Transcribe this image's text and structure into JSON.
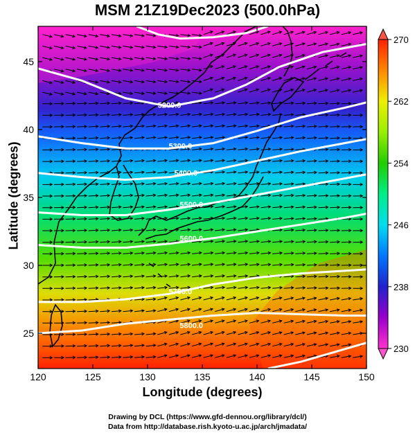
{
  "title": "MSM 21Z19Dec2023 (500.0hPa)",
  "xlabel": "Longitude (degrees)",
  "ylabel": "Latitude  (degrees)",
  "credits": [
    "Drawing by DCL (https://www.gfd-dennou.org/library/dcl/)",
    "Data from http://database.rish.kyoto-u.ac.jp/arch/jmadata/"
  ],
  "chart_data": {
    "type": "heatmap",
    "xlim": [
      120,
      150
    ],
    "ylim": [
      22.4,
      47.6
    ],
    "x_ticks": [
      120,
      125,
      130,
      135,
      140,
      145,
      150
    ],
    "y_ticks": [
      25,
      30,
      35,
      40,
      45
    ],
    "colorbar": {
      "min": 230,
      "max": 270,
      "ticks": [
        230,
        238,
        246,
        254,
        262,
        270
      ],
      "stops": [
        {
          "value": 230,
          "color": "#ff33cc"
        },
        {
          "value": 234,
          "color": "#9900cc"
        },
        {
          "value": 238,
          "color": "#2222cc"
        },
        {
          "value": 242,
          "color": "#0077ff"
        },
        {
          "value": 246,
          "color": "#00ddee"
        },
        {
          "value": 250,
          "color": "#00ee88"
        },
        {
          "value": 254,
          "color": "#22cc00"
        },
        {
          "value": 258,
          "color": "#99ee00"
        },
        {
          "value": 262,
          "color": "#eeee00"
        },
        {
          "value": 266,
          "color": "#ff8800"
        },
        {
          "value": 270,
          "color": "#ff2200"
        }
      ]
    },
    "contours": [
      {
        "label": "5200.0",
        "label_pos": [
          132.0,
          41.8
        ],
        "points": [
          [
            120,
            44.5
          ],
          [
            124,
            43.6
          ],
          [
            128,
            42.3
          ],
          [
            132,
            41.7
          ],
          [
            136,
            42.3
          ],
          [
            139,
            43.3
          ],
          [
            142,
            44.6
          ],
          [
            146,
            45.7
          ],
          [
            150,
            46.3
          ]
        ]
      },
      {
        "label": "5300.0",
        "label_pos": [
          133.0,
          38.8
        ],
        "points": [
          [
            120,
            39.5
          ],
          [
            124,
            39.0
          ],
          [
            128,
            38.6
          ],
          [
            132,
            38.6
          ],
          [
            136,
            39.0
          ],
          [
            140,
            39.9
          ],
          [
            144,
            40.9
          ],
          [
            148,
            41.6
          ],
          [
            150,
            42.0
          ]
        ]
      },
      {
        "label": "5400.0",
        "label_pos": [
          133.5,
          36.8
        ],
        "points": [
          [
            120,
            36.8
          ],
          [
            124,
            36.5
          ],
          [
            128,
            36.3
          ],
          [
            132,
            36.5
          ],
          [
            136,
            37.0
          ],
          [
            140,
            37.7
          ],
          [
            144,
            38.4
          ],
          [
            148,
            39.0
          ],
          [
            150,
            39.3
          ]
        ]
      },
      {
        "label": "5500.0",
        "label_pos": [
          134.0,
          34.5
        ],
        "points": [
          [
            120,
            33.9
          ],
          [
            124,
            33.7
          ],
          [
            128,
            33.7
          ],
          [
            132,
            34.1
          ],
          [
            136,
            34.6
          ],
          [
            140,
            35.2
          ],
          [
            144,
            35.8
          ],
          [
            148,
            36.4
          ],
          [
            150,
            36.7
          ]
        ]
      },
      {
        "label": "5600.0",
        "label_pos": [
          134.0,
          32.0
        ],
        "points": [
          [
            120,
            31.5
          ],
          [
            124,
            31.3
          ],
          [
            128,
            31.3
          ],
          [
            132,
            31.6
          ],
          [
            136,
            32.0
          ],
          [
            140,
            32.5
          ],
          [
            144,
            33.0
          ],
          [
            148,
            33.5
          ],
          [
            150,
            33.8
          ]
        ]
      },
      {
        "label": "5700.0",
        "label_pos": [
          133.0,
          28.1
        ],
        "points": [
          [
            120,
            27.3
          ],
          [
            124,
            27.3
          ],
          [
            128,
            27.5
          ],
          [
            132,
            27.9
          ],
          [
            136,
            28.6
          ],
          [
            140,
            29.1
          ],
          [
            144,
            29.4
          ],
          [
            148,
            29.6
          ],
          [
            150,
            29.7
          ]
        ]
      },
      {
        "label": "5800.0",
        "label_pos": [
          134.0,
          25.6
        ],
        "points": [
          [
            120,
            25.0
          ],
          [
            124,
            25.2
          ],
          [
            128,
            25.7
          ],
          [
            132,
            26.0
          ],
          [
            136,
            26.3
          ],
          [
            140,
            26.5
          ],
          [
            144,
            26.4
          ],
          [
            148,
            26.3
          ],
          [
            150,
            26.3
          ]
        ]
      },
      {
        "label": "",
        "label_pos": null,
        "points": [
          [
            129,
            47.6
          ],
          [
            131,
            47.0
          ],
          [
            133,
            46.7
          ],
          [
            136,
            46.8
          ],
          [
            139,
            47.1
          ],
          [
            141,
            47.6
          ]
        ]
      },
      {
        "label": "",
        "label_pos": null,
        "points": [
          [
            141,
            22.4
          ],
          [
            144,
            22.9
          ],
          [
            147,
            23.6
          ],
          [
            150,
            24.3
          ]
        ]
      }
    ]
  }
}
